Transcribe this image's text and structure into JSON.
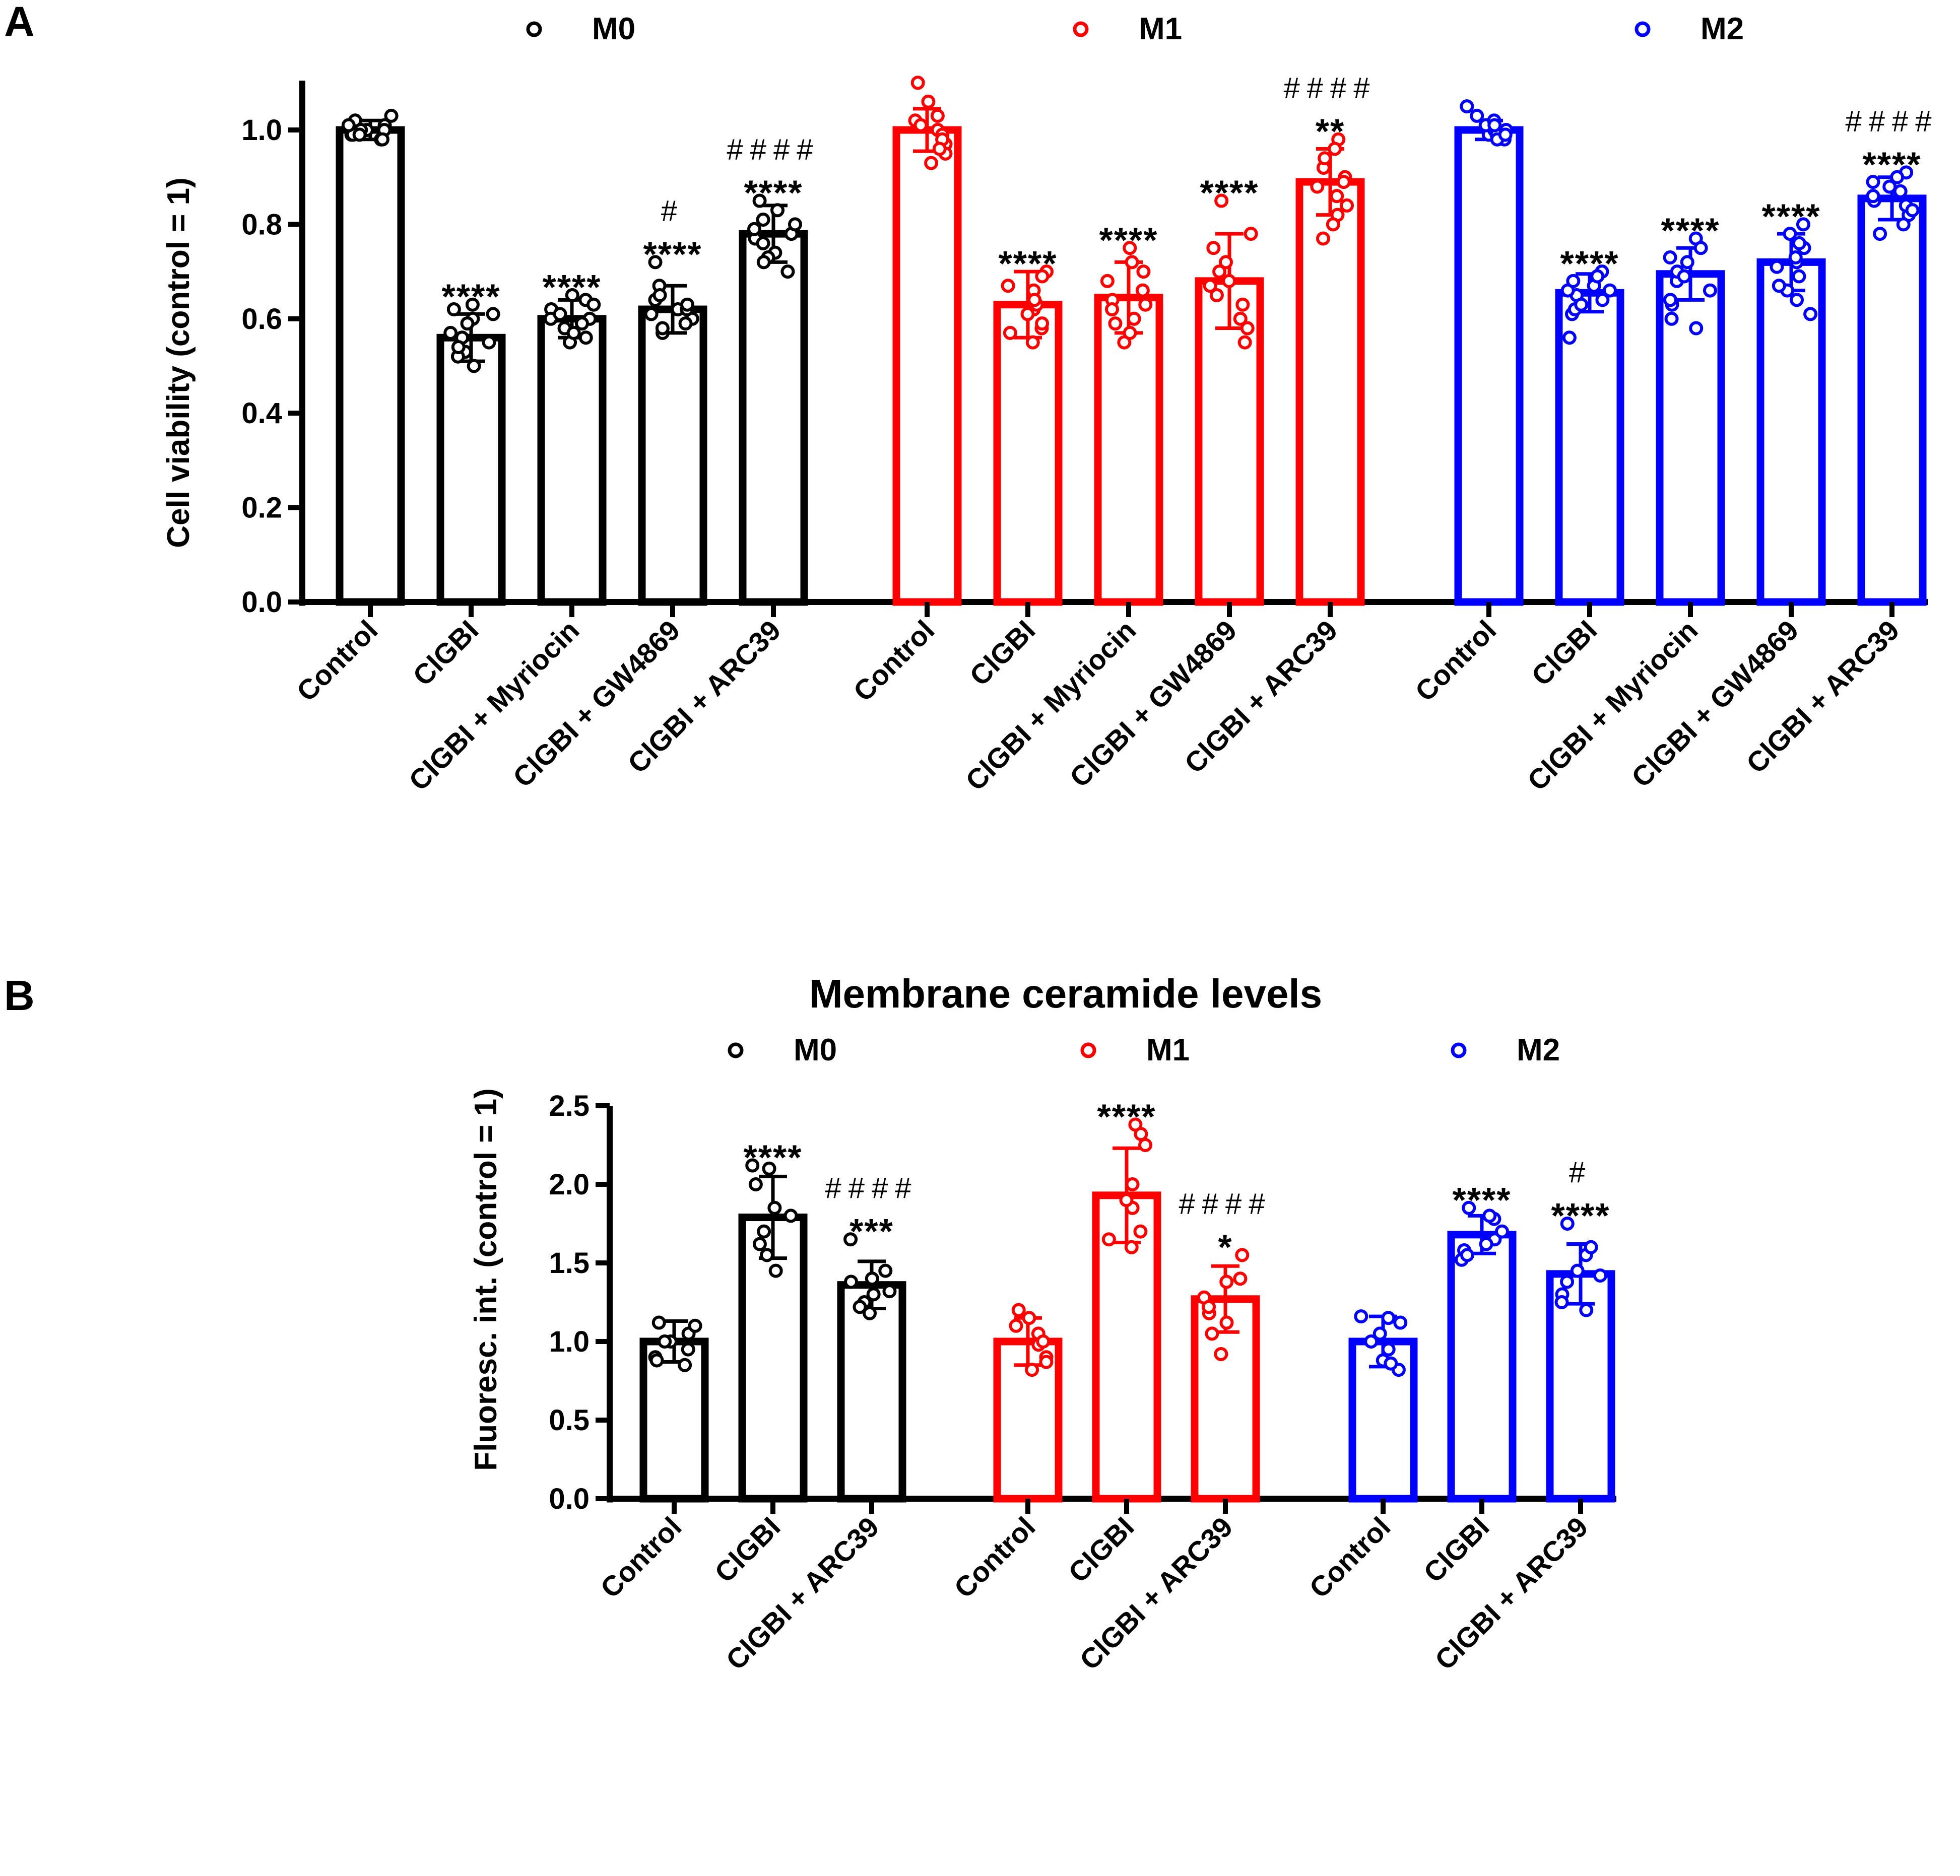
{
  "colors": {
    "M0": "#000000",
    "M1": "#ff0000",
    "M2": "#0000ff"
  },
  "chart_data": [
    {
      "panel": "A",
      "type": "bar",
      "title": "",
      "ylabel": "Cell viability (control = 1)",
      "ylim": [
        0,
        1.1
      ],
      "yticks": [
        "0.0",
        "0.2",
        "0.4",
        "0.6",
        "0.8",
        "1.0"
      ],
      "yticks_values": [
        0,
        0.2,
        0.4,
        0.6,
        0.8,
        1.0
      ],
      "legend": [
        "M0",
        "M1",
        "M2"
      ],
      "groups": [
        {
          "name": "M0",
          "categories": [
            "Control",
            "ClGBI",
            "ClGBI + Myriocin",
            "ClGBI + GW4869",
            "ClGBI + ARC39"
          ],
          "values": [
            1.0,
            0.56,
            0.6,
            0.62,
            0.78
          ],
          "sd": [
            0.02,
            0.05,
            0.04,
            0.05,
            0.06
          ],
          "sig": [
            "",
            "****",
            "****",
            "****",
            "****"
          ],
          "hash": [
            "",
            "",
            "",
            "#",
            "####"
          ],
          "points": [
            [
              0.98,
              0.99,
              1.0,
              1.01,
              1.02,
              1.0,
              0.99,
              1.03,
              1.0,
              0.98,
              1.01,
              0.99
            ],
            [
              0.5,
              0.53,
              0.56,
              0.6,
              0.62,
              0.57,
              0.55,
              0.52,
              0.59,
              0.61,
              0.54,
              0.63
            ],
            [
              0.55,
              0.58,
              0.6,
              0.62,
              0.64,
              0.6,
              0.57,
              0.61,
              0.65,
              0.56,
              0.59,
              0.63
            ],
            [
              0.57,
              0.6,
              0.62,
              0.64,
              0.67,
              0.62,
              0.59,
              0.61,
              0.72,
              0.58,
              0.63,
              0.65
            ],
            [
              0.7,
              0.74,
              0.78,
              0.81,
              0.85,
              0.77,
              0.73,
              0.79,
              0.83,
              0.76,
              0.8,
              0.72
            ]
          ]
        },
        {
          "name": "M1",
          "categories": [
            "Control",
            "ClGBI",
            "ClGBI + Myriocin",
            "ClGBI + GW4869",
            "ClGBI + ARC39"
          ],
          "values": [
            1.0,
            0.63,
            0.645,
            0.68,
            0.89
          ],
          "sd": [
            0.045,
            0.07,
            0.075,
            0.1,
            0.07
          ],
          "sig": [
            "",
            "****",
            "****",
            "****",
            "**"
          ],
          "hash": [
            "",
            "",
            "",
            "",
            "####"
          ],
          "points": [
            [
              0.93,
              0.97,
              1.0,
              1.03,
              1.06,
              0.99,
              0.95,
              1.02,
              1.1,
              0.98,
              1.01,
              0.96
            ],
            [
              0.55,
              0.58,
              0.62,
              0.66,
              0.7,
              0.63,
              0.57,
              0.61,
              0.69,
              0.64,
              0.59,
              0.67
            ],
            [
              0.55,
              0.59,
              0.64,
              0.68,
              0.75,
              0.63,
              0.57,
              0.62,
              0.7,
              0.66,
              0.6,
              0.72
            ],
            [
              0.55,
              0.6,
              0.67,
              0.72,
              0.85,
              0.68,
              0.58,
              0.65,
              0.78,
              0.7,
              0.63,
              0.75
            ],
            [
              0.77,
              0.82,
              0.88,
              0.92,
              0.98,
              0.9,
              0.8,
              0.86,
              0.94,
              0.89,
              0.84,
              0.96
            ]
          ]
        },
        {
          "name": "M2",
          "categories": [
            "Control",
            "ClGBI",
            "ClGBI + Myriocin",
            "ClGBI + GW4869",
            "ClGBI + ARC39"
          ],
          "values": [
            1.0,
            0.655,
            0.695,
            0.72,
            0.855
          ],
          "sd": [
            0.02,
            0.04,
            0.055,
            0.06,
            0.045
          ],
          "sig": [
            "",
            "****",
            "****",
            "****",
            "****"
          ],
          "hash": [
            "",
            "",
            "",
            "",
            "####"
          ],
          "points": [
            [
              0.98,
              0.99,
              1.0,
              1.01,
              1.02,
              1.0,
              0.99,
              1.03,
              1.05,
              0.98,
              1.01,
              0.99
            ],
            [
              0.56,
              0.61,
              0.64,
              0.66,
              0.7,
              0.65,
              0.62,
              0.67,
              0.69,
              0.63,
              0.66,
              0.68
            ],
            [
              0.58,
              0.63,
              0.68,
              0.72,
              0.77,
              0.7,
              0.6,
              0.66,
              0.75,
              0.69,
              0.64,
              0.73
            ],
            [
              0.61,
              0.66,
              0.71,
              0.75,
              0.8,
              0.72,
              0.64,
              0.69,
              0.78,
              0.73,
              0.67,
              0.76
            ],
            [
              0.78,
              0.82,
              0.85,
              0.88,
              0.91,
              0.86,
              0.8,
              0.84,
              0.9,
              0.87,
              0.83,
              0.89
            ]
          ]
        }
      ]
    },
    {
      "panel": "B",
      "type": "bar",
      "title": "Membrane ceramide levels",
      "ylabel": "Fluoresc. int. (control = 1)",
      "ylim": [
        0,
        2.5
      ],
      "yticks": [
        "0.0",
        "0.5",
        "1.0",
        "1.5",
        "2.0",
        "2.5"
      ],
      "yticks_values": [
        0,
        0.5,
        1.0,
        1.5,
        2.0,
        2.5
      ],
      "legend": [
        "M0",
        "M1",
        "M2"
      ],
      "groups": [
        {
          "name": "M0",
          "categories": [
            "Control",
            "ClGBI",
            "ClGBI + ARC39"
          ],
          "values": [
            1.0,
            1.79,
            1.36
          ],
          "sd": [
            0.13,
            0.26,
            0.15
          ],
          "sig": [
            "",
            "****",
            "***"
          ],
          "hash": [
            "",
            "",
            "####"
          ],
          "points": [
            [
              0.85,
              0.9,
              1.0,
              1.05,
              1.12,
              0.95,
              0.88,
              1.1,
              1.0
            ],
            [
              1.45,
              1.55,
              1.7,
              1.85,
              2.0,
              2.12,
              1.8,
              1.62,
              2.1
            ],
            [
              1.18,
              1.25,
              1.32,
              1.38,
              1.45,
              1.65,
              1.3,
              1.22,
              1.4
            ]
          ]
        },
        {
          "name": "M1",
          "categories": [
            "Control",
            "ClGBI",
            "ClGBI + ARC39"
          ],
          "values": [
            1.0,
            1.93,
            1.27
          ],
          "sd": [
            0.15,
            0.3,
            0.21
          ],
          "sig": [
            "",
            "****",
            "*"
          ],
          "hash": [
            "",
            "",
            "####"
          ],
          "points": [
            [
              0.82,
              0.9,
              0.98,
              1.05,
              1.15,
              1.0,
              0.87,
              1.1,
              1.2
            ],
            [
              1.6,
              1.7,
              1.85,
              2.0,
              2.25,
              2.38,
              1.65,
              1.9,
              2.32
            ],
            [
              0.92,
              1.05,
              1.18,
              1.28,
              1.38,
              1.55,
              1.12,
              1.22,
              1.4
            ]
          ]
        },
        {
          "name": "M2",
          "categories": [
            "Control",
            "ClGBI",
            "ClGBI + ARC39"
          ],
          "values": [
            1.0,
            1.68,
            1.43
          ],
          "sd": [
            0.16,
            0.12,
            0.19
          ],
          "sig": [
            "",
            "****",
            "****"
          ],
          "hash": [
            "",
            "",
            "#"
          ],
          "points": [
            [
              0.82,
              0.88,
              0.95,
              1.05,
              1.15,
              1.12,
              0.86,
              1.0,
              1.16
            ],
            [
              1.52,
              1.58,
              1.65,
              1.7,
              1.78,
              1.85,
              1.55,
              1.62,
              1.8
            ],
            [
              1.2,
              1.3,
              1.38,
              1.45,
              1.55,
              1.75,
              1.25,
              1.42,
              1.6
            ]
          ]
        }
      ]
    }
  ]
}
